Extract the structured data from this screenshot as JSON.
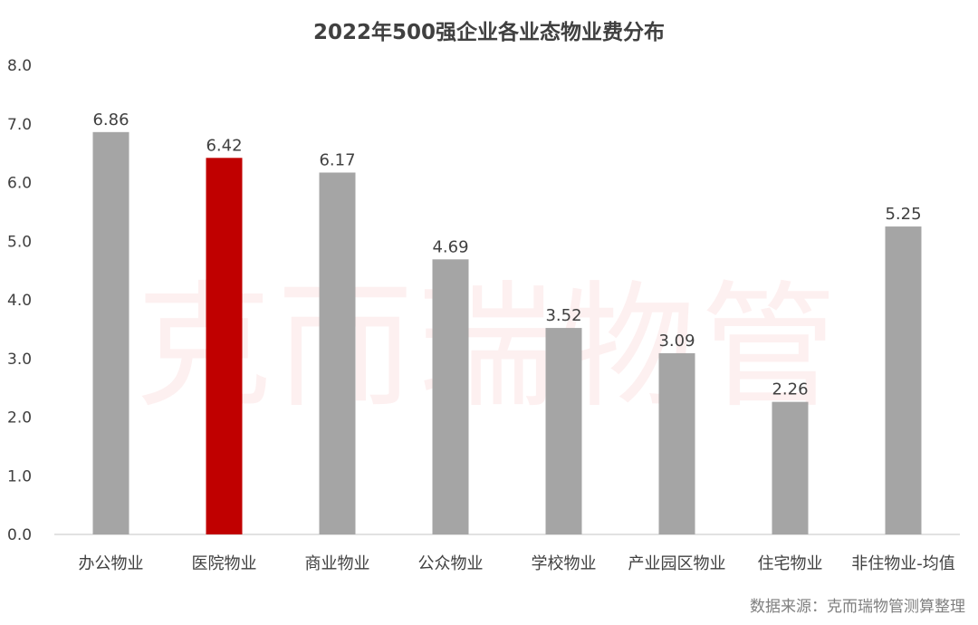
{
  "chart_data": {
    "type": "bar",
    "title": "2022年500强企业各业态物业费分布",
    "categories": [
      "办公物业",
      "医院物业",
      "商业物业",
      "公众物业",
      "学校物业",
      "产业园区物业",
      "住宅物业",
      "非住物业-均值"
    ],
    "values": [
      6.86,
      6.42,
      6.17,
      4.69,
      3.52,
      3.09,
      2.26,
      5.25
    ],
    "value_labels": [
      "6.86",
      "6.42",
      "6.17",
      "4.69",
      "3.52",
      "3.09",
      "2.26",
      "5.25"
    ],
    "highlight_index": 1,
    "ylim": [
      0,
      8
    ],
    "yticks": [
      "0.0",
      "1.0",
      "2.0",
      "3.0",
      "4.0",
      "5.0",
      "6.0",
      "7.0",
      "8.0"
    ],
    "grid": false,
    "legend": "none",
    "colors": {
      "bar": "#a5a5a5",
      "highlight": "#c00000",
      "axis": "#d9d9d9",
      "text": "#404040"
    },
    "xlabel": "",
    "ylabel": ""
  },
  "source_note": "数据来源：克而瑞物管测算整理",
  "watermark": "克而瑞物管"
}
